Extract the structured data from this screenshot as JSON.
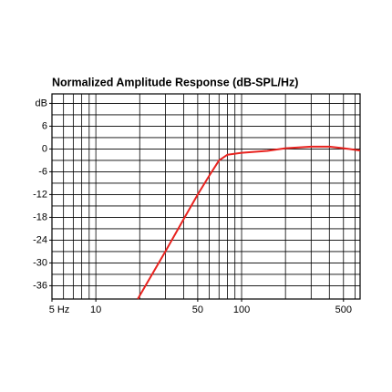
{
  "chart_data": {
    "type": "line",
    "title": "Normalized Amplitude Response (dB-SPL/Hz)",
    "log_x": true,
    "xlim": [
      5,
      650
    ],
    "ylim": [
      -39.5,
      14.5
    ],
    "xticks": [
      {
        "value": 5,
        "label": "5 Hz"
      },
      10,
      50,
      100,
      500
    ],
    "xgrid": [
      5,
      6,
      7,
      8,
      9,
      10,
      20,
      30,
      40,
      50,
      60,
      70,
      80,
      90,
      100,
      200,
      300,
      400,
      500,
      600
    ],
    "yticks": [
      {
        "value": 12,
        "label": "dB"
      },
      6,
      0,
      -6,
      -12,
      -18,
      -24,
      -30,
      -36
    ],
    "ygrid": [
      12,
      9,
      6,
      3,
      0,
      -3,
      -6,
      -9,
      -12,
      -15,
      -18,
      -21,
      -24,
      -27,
      -30,
      -33,
      -36
    ],
    "x": [
      19.4,
      30,
      40,
      50,
      60,
      70,
      80,
      100,
      150,
      200,
      300,
      400,
      500,
      650
    ],
    "series": [
      {
        "color": "#e8231f",
        "values": [
          -39.5,
          -27,
          -18.5,
          -12,
          -7,
          -3,
          -1.5,
          -1,
          -0.5,
          0.2,
          0.6,
          0.6,
          0.2,
          -0.4
        ]
      }
    ]
  }
}
